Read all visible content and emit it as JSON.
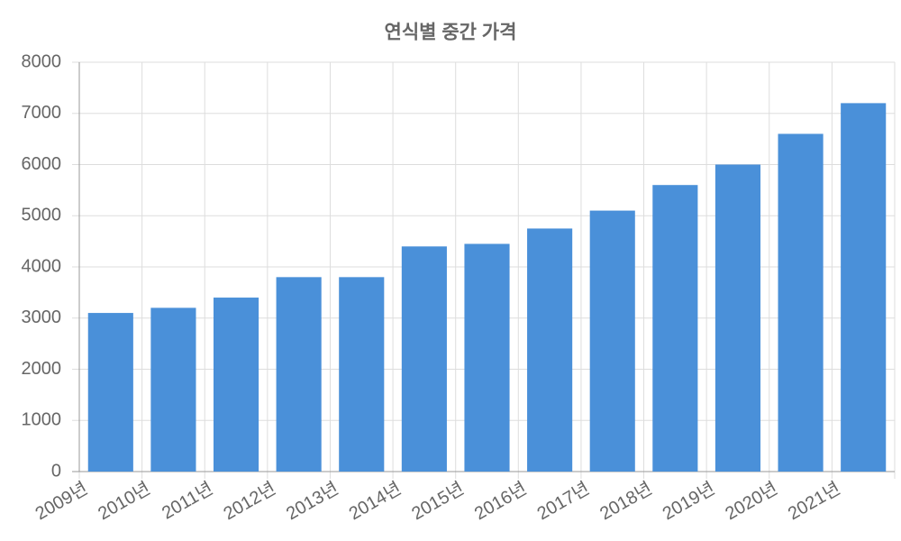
{
  "chart_data": {
    "type": "bar",
    "title": "연식별 중간 가격",
    "categories": [
      "2009년",
      "2010년",
      "2011년",
      "2012년",
      "2013년",
      "2014년",
      "2015년",
      "2016년",
      "2017년",
      "2018년",
      "2019년",
      "2020년",
      "2021년"
    ],
    "values": [
      3100,
      3200,
      3400,
      3800,
      3800,
      4400,
      4450,
      4750,
      5100,
      5600,
      6000,
      6600,
      7200
    ],
    "color": "#4a90d9",
    "ylim": [
      0,
      8000
    ],
    "yticks": [
      0,
      1000,
      2000,
      3000,
      4000,
      5000,
      6000,
      7000,
      8000
    ],
    "grid": true
  }
}
